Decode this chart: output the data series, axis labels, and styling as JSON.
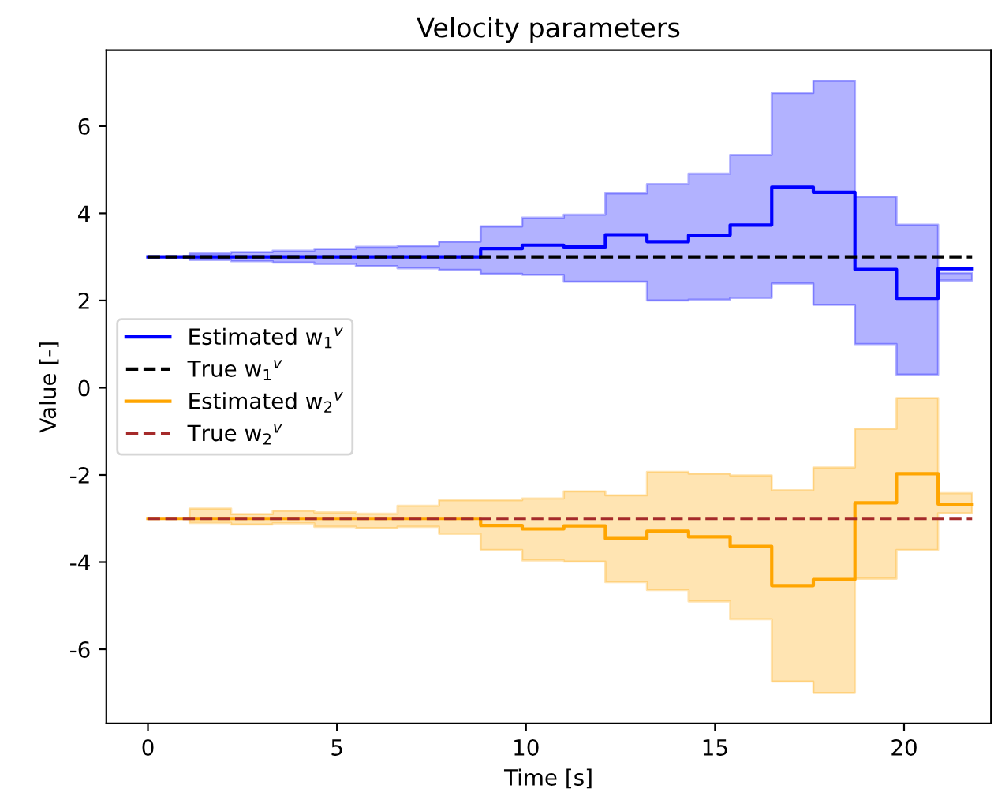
{
  "chart_data": {
    "type": "step",
    "title": "Velocity parameters",
    "xlabel": "Time [s]",
    "ylabel": "Value [-]",
    "x": [
      0,
      1.1,
      2.2,
      3.3,
      4.4,
      5.5,
      6.6,
      7.7,
      8.8,
      9.9,
      11.0,
      12.1,
      13.2,
      14.3,
      15.4,
      16.5,
      17.6,
      18.7,
      19.8,
      20.9,
      21.8
    ],
    "series": [
      {
        "name": "Estimated w$_{1}$$^{v}$",
        "color": "#0000ff",
        "values": [
          3.0,
          3.0,
          3.0,
          3.0,
          3.0,
          3.0,
          3.0,
          3.0,
          3.19,
          3.27,
          3.23,
          3.51,
          3.35,
          3.5,
          3.73,
          4.6,
          4.48,
          2.71,
          2.05,
          2.73,
          2.73
        ],
        "lower": [
          3.0,
          2.93,
          2.9,
          2.87,
          2.84,
          2.79,
          2.74,
          2.7,
          2.61,
          2.59,
          2.43,
          2.43,
          2.0,
          2.02,
          2.06,
          2.39,
          1.9,
          1.0,
          0.3,
          2.46,
          2.46
        ],
        "upper": [
          3.0,
          3.08,
          3.11,
          3.14,
          3.18,
          3.23,
          3.25,
          3.35,
          3.7,
          3.9,
          3.97,
          4.46,
          4.67,
          4.91,
          5.34,
          6.76,
          7.04,
          4.38,
          3.74,
          2.63,
          2.63
        ]
      },
      {
        "name": "True w$_{1}$$^{v}$",
        "type": "line",
        "line_style": "dashed",
        "color": "#000000",
        "values": [
          3,
          3,
          3,
          3,
          3,
          3,
          3,
          3,
          3,
          3,
          3,
          3,
          3,
          3,
          3,
          3,
          3,
          3,
          3,
          3,
          3
        ]
      },
      {
        "name": "Estimated w$_{2}$$^{v}$",
        "color": "#ffa500",
        "values": [
          -3.0,
          -3.0,
          -3.0,
          -3.0,
          -3.0,
          -3.0,
          -3.0,
          -3.0,
          -3.16,
          -3.24,
          -3.17,
          -3.46,
          -3.29,
          -3.42,
          -3.64,
          -4.54,
          -4.4,
          -2.64,
          -1.97,
          -2.67,
          -2.67
        ],
        "lower": [
          -3.0,
          -3.1,
          -3.14,
          -3.11,
          -3.19,
          -3.22,
          -3.19,
          -3.35,
          -3.72,
          -3.96,
          -3.99,
          -4.46,
          -4.64,
          -4.9,
          -5.31,
          -6.74,
          -7.0,
          -4.38,
          -3.72,
          -2.88,
          -2.88
        ],
        "upper": [
          -3.0,
          -2.77,
          -2.9,
          -2.82,
          -2.86,
          -2.89,
          -2.71,
          -2.58,
          -2.58,
          -2.54,
          -2.38,
          -2.47,
          -1.93,
          -1.97,
          -2.01,
          -2.35,
          -1.83,
          -0.94,
          -0.24,
          -2.42,
          -2.42
        ]
      },
      {
        "name": "True w$_{2}$$^{v}$",
        "type": "line",
        "line_style": "dashed",
        "color": "#a52a2a",
        "values": [
          -3,
          -3,
          -3,
          -3,
          -3,
          -3,
          -3,
          -3,
          -3,
          -3,
          -3,
          -3,
          -3,
          -3,
          -3,
          -3,
          -3,
          -3,
          -3,
          -3,
          -3
        ]
      }
    ],
    "xlim": [
      -1.1,
      22.3
    ],
    "ylim": [
      -7.7,
      7.74
    ],
    "xticks": [
      0,
      5,
      10,
      15,
      20
    ],
    "yticks": [
      -6,
      -4,
      -2,
      0,
      2,
      4,
      6
    ],
    "legend": "center left",
    "grid": false
  }
}
